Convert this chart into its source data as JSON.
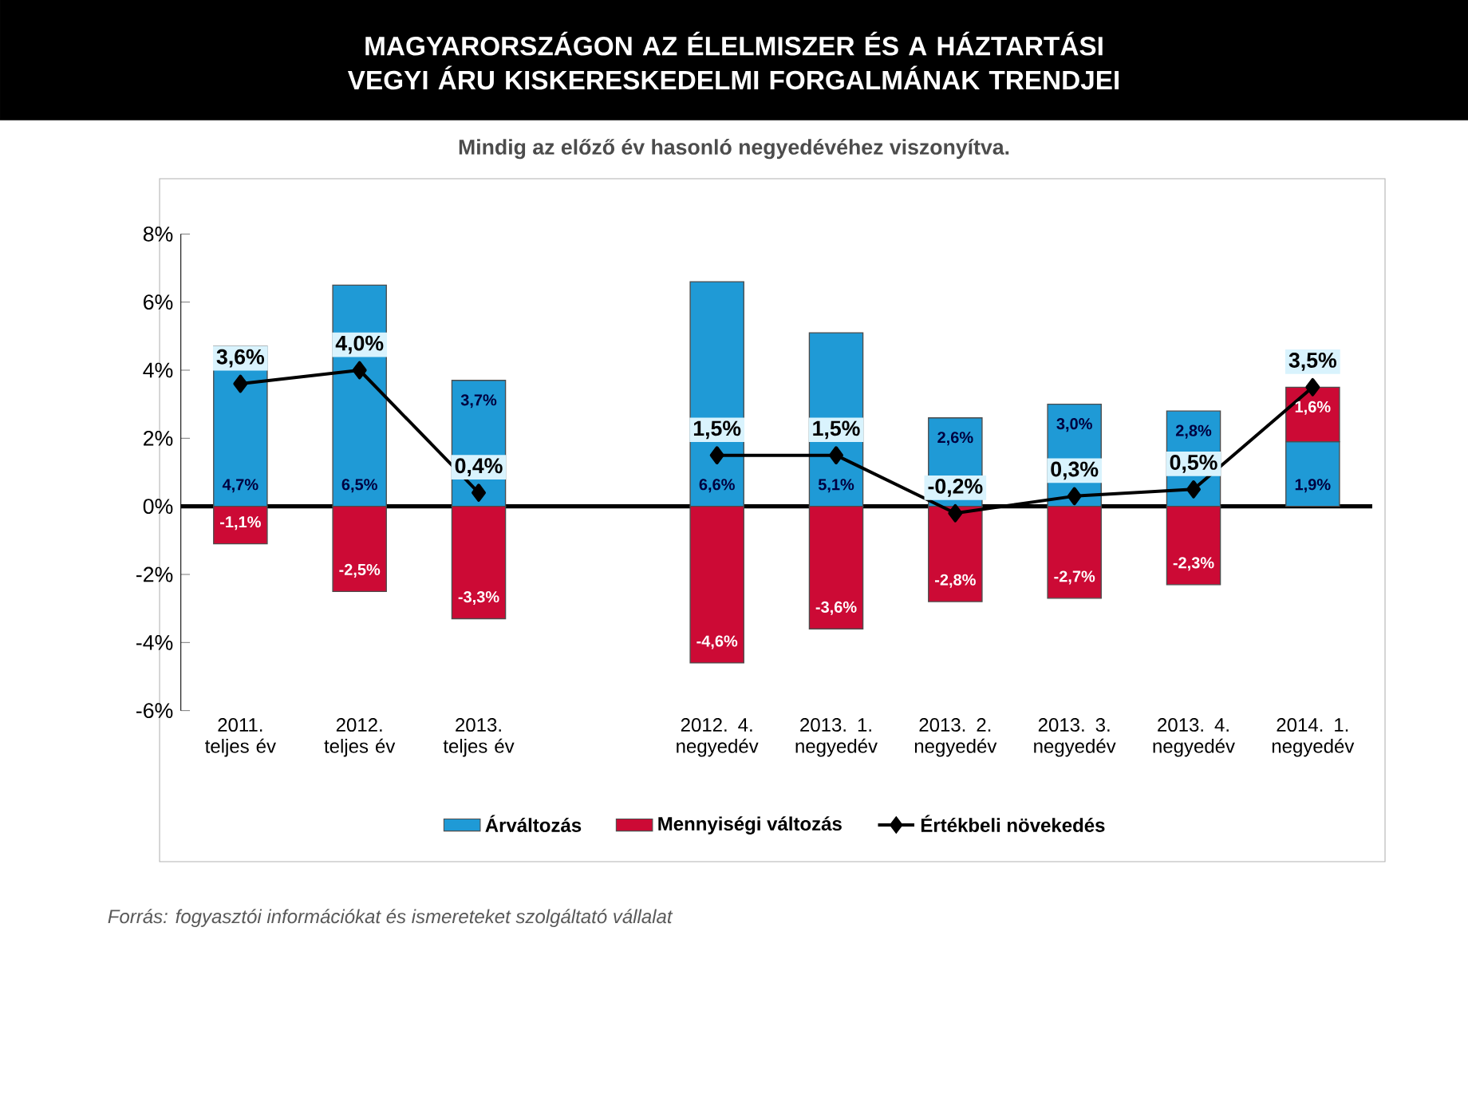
{
  "chart_data": {
    "type": "bar",
    "title": "MAGYARORSZÁGON AZ ÉLELMISZER ÉS A HÁZTARTÁSI VEGYI ÁRU KISKERESKEDELMI FORGALMÁNAK TRENDJEI",
    "subtitle": "Mindig az előző év hasonló negyedévéhez viszonyítva.",
    "annotations": [
      "Forrás: fogyasztói információkat és ismereteket szolgáltató vállalat"
    ],
    "categories": [
      "2011. teljes év",
      "2012. teljes év",
      "2013. teljes év",
      null,
      "2012. 4. negyedév",
      "2013. 1. negyedév",
      "2013. 2. negyedév",
      "2013. 3. negyedév",
      "2013. 4. negyedév",
      "2014. 1. negyedév"
    ],
    "stacked": true,
    "series": [
      {
        "name": "Árváltozás",
        "color": "#1f9ad6",
        "values": [
          4.7,
          6.5,
          3.7,
          null,
          6.6,
          5.1,
          2.6,
          3.0,
          2.8,
          1.9
        ],
        "value_labels": [
          "4,7%",
          "6,5%",
          "3,7%",
          null,
          "6,6%",
          "5,1%",
          "2,6%",
          "3,0%",
          "2,8%",
          "1,9%"
        ]
      },
      {
        "name": "Mennyiségi változás",
        "color": "#cc0a35",
        "values": [
          -1.1,
          -2.5,
          -3.3,
          null,
          -4.6,
          -3.6,
          -2.8,
          -2.7,
          -2.3,
          1.6
        ],
        "value_labels": [
          "-1,1%",
          "-2,5%",
          "-3,3%",
          null,
          "-4,6%",
          "-3,6%",
          "-2,8%",
          "-2,7%",
          "-2,3%",
          "1,6%"
        ]
      },
      {
        "name": "Értékbeli növekedés",
        "type": "line",
        "color": "#000000",
        "values": [
          3.6,
          4.0,
          0.4,
          null,
          1.5,
          1.5,
          -0.2,
          0.3,
          0.5,
          3.5
        ],
        "value_labels": [
          "3,6%",
          "4,0%",
          "0,4%",
          null,
          "1,5%",
          "1,5%",
          "-0,2%",
          "0,3%",
          "0,5%",
          "3,5%"
        ]
      }
    ],
    "marker": "diamond",
    "ylim": [
      -6,
      8
    ],
    "yticks": [
      {
        "value": -6,
        "label": "-6%"
      },
      {
        "value": -4,
        "label": "-4%"
      },
      {
        "value": -2,
        "label": "-2%"
      },
      {
        "value": 0,
        "label": "0%"
      },
      {
        "value": 2,
        "label": "2%"
      },
      {
        "value": 4,
        "label": "4%"
      },
      {
        "value": 6,
        "label": "6%"
      },
      {
        "value": 8,
        "label": "8%"
      }
    ],
    "grid": false,
    "ref_lines": [
      {
        "axis": "y",
        "value": 0,
        "color": "#000000"
      }
    ],
    "legend": "bottom"
  }
}
